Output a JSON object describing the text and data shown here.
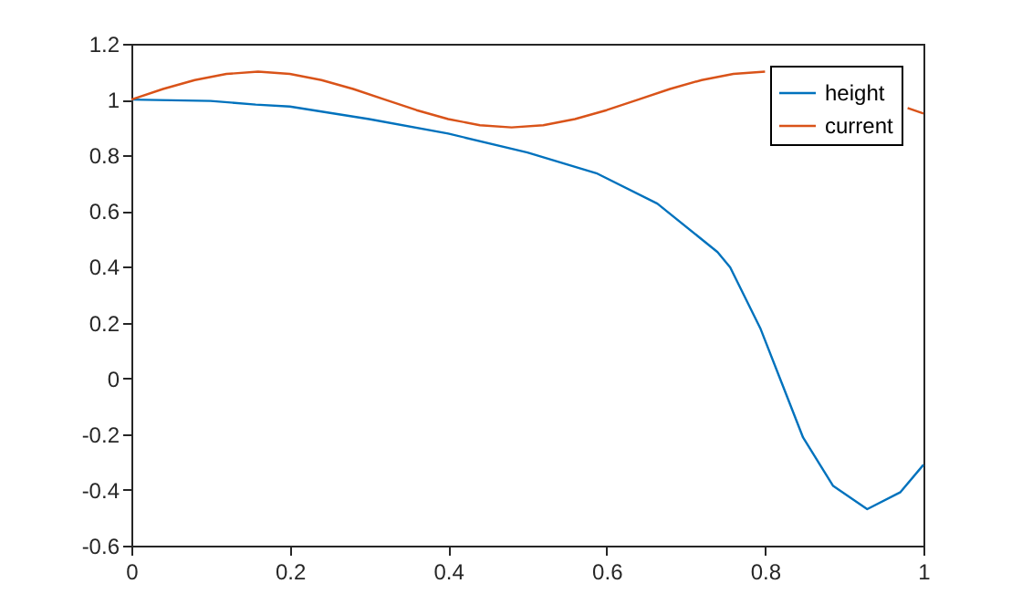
{
  "chart_data": {
    "type": "line",
    "xlim": [
      0,
      1
    ],
    "xticks": [
      0,
      0.2,
      0.4,
      0.6,
      0.8,
      1
    ],
    "ylim": [
      -0.6,
      1.2
    ],
    "yticks": [
      -0.6,
      -0.4,
      -0.2,
      0,
      0.2,
      0.4,
      0.6,
      0.8,
      1,
      1.2
    ],
    "grid": false,
    "legend": "top right",
    "series": [
      {
        "name": "height",
        "color": "#0072bd",
        "x": [
          0,
          0.1,
          0.157,
          0.2,
          0.3,
          0.4,
          0.5,
          0.587,
          0.664,
          0.74,
          0.756,
          0.794,
          0.821,
          0.848,
          0.886,
          0.929,
          0.971,
          1.0
        ],
        "values": [
          1,
          0.995,
          0.982,
          0.975,
          0.93,
          0.878,
          0.81,
          0.736,
          0.627,
          0.453,
          0.398,
          0.18,
          -0.016,
          -0.212,
          -0.386,
          -0.469,
          -0.408,
          -0.31
        ]
      },
      {
        "name": "current",
        "color": "#d95319",
        "x": [
          0,
          0.04,
          0.08,
          0.12,
          0.16,
          0.2,
          0.24,
          0.28,
          0.32,
          0.36,
          0.4,
          0.44,
          0.48,
          0.52,
          0.56,
          0.6,
          0.64,
          0.68,
          0.72,
          0.76,
          0.8,
          0.84,
          0.88,
          0.92,
          0.98,
          1.0
        ],
        "values": [
          1,
          1.038,
          1.07,
          1.092,
          1.1,
          1.092,
          1.07,
          1.038,
          1.0,
          0.962,
          0.93,
          0.908,
          0.9,
          0.908,
          0.93,
          0.962,
          1.0,
          1.038,
          1.07,
          1.092,
          1.1,
          null,
          null,
          null,
          0.97,
          0.95
        ]
      }
    ]
  }
}
